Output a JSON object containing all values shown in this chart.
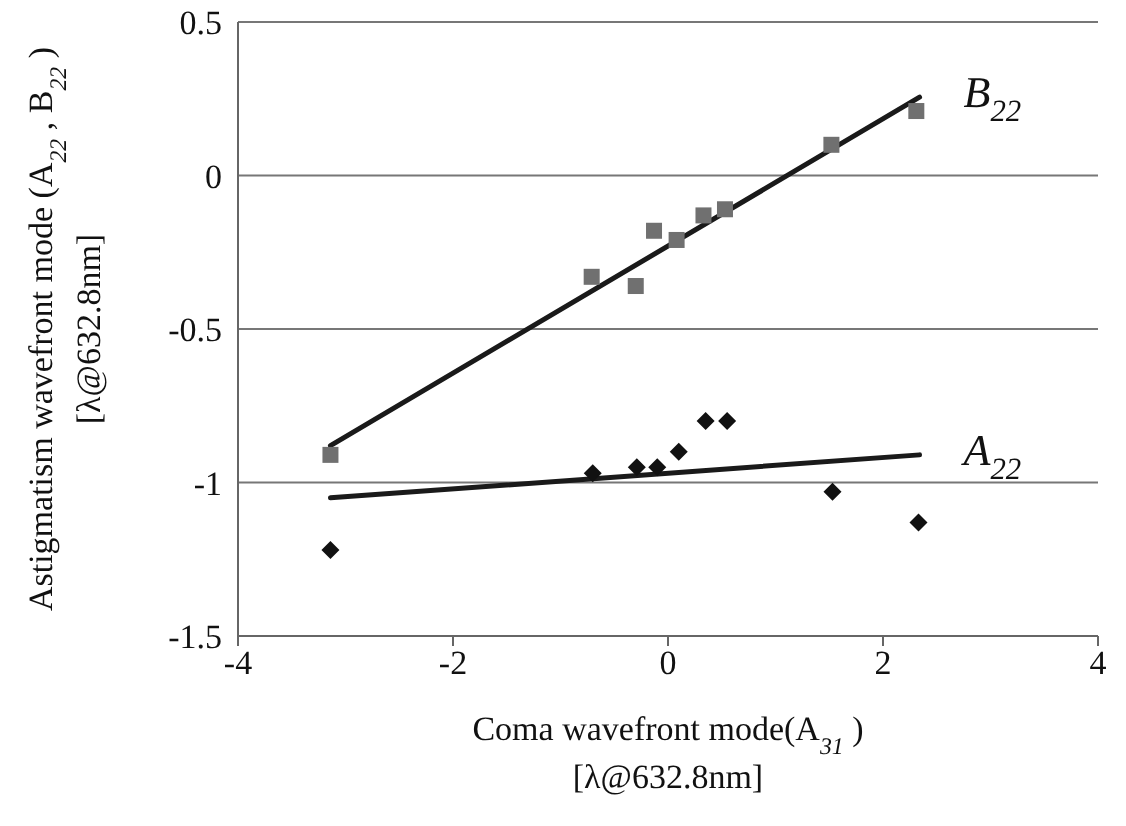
{
  "chart_data": {
    "type": "scatter",
    "xlabel": "Coma wavefront mode(A$_{31}$ )\n[λ@632.8nm]",
    "ylabel": "Astigmatism wavefront mode (A$_{22}$ , B$_{22}$ )\n[λ@632.8nm]",
    "xlim": [
      -4,
      4
    ],
    "xticks": [
      -4,
      -2,
      0,
      2,
      4
    ],
    "ylim": [
      -1.5,
      0.5
    ],
    "yticks": [
      -1.5,
      -1,
      -0.5,
      0,
      0.5
    ],
    "grid": "y",
    "series": [
      {
        "marker": "square",
        "color": "#707070",
        "x": [
          -3.14,
          -0.71,
          -0.3,
          -0.13,
          0.08,
          0.33,
          0.53,
          1.52,
          2.31
        ],
        "values": [
          -0.91,
          -0.33,
          -0.36,
          -0.18,
          -0.21,
          -0.13,
          -0.11,
          0.1,
          0.21
        ]
      },
      {
        "marker": "diamond",
        "color": "#111111",
        "x": [
          -3.14,
          -0.7,
          -0.29,
          -0.1,
          0.1,
          0.35,
          0.55,
          1.53,
          2.33
        ],
        "values": [
          -1.22,
          -0.97,
          -0.95,
          -0.95,
          -0.9,
          -0.8,
          -0.8,
          -1.03,
          -1.13
        ]
      },
      {
        "type": "line",
        "name": "B$_{22}$",
        "color": "#1a1a1a",
        "x": [
          -3.14,
          2.34
        ],
        "values": [
          -0.88,
          0.255
        ]
      },
      {
        "type": "line",
        "name": "A$_{22}$",
        "color": "#1a1a1a",
        "x": [
          -3.14,
          2.34
        ],
        "values": [
          -1.05,
          -0.91
        ]
      }
    ]
  }
}
